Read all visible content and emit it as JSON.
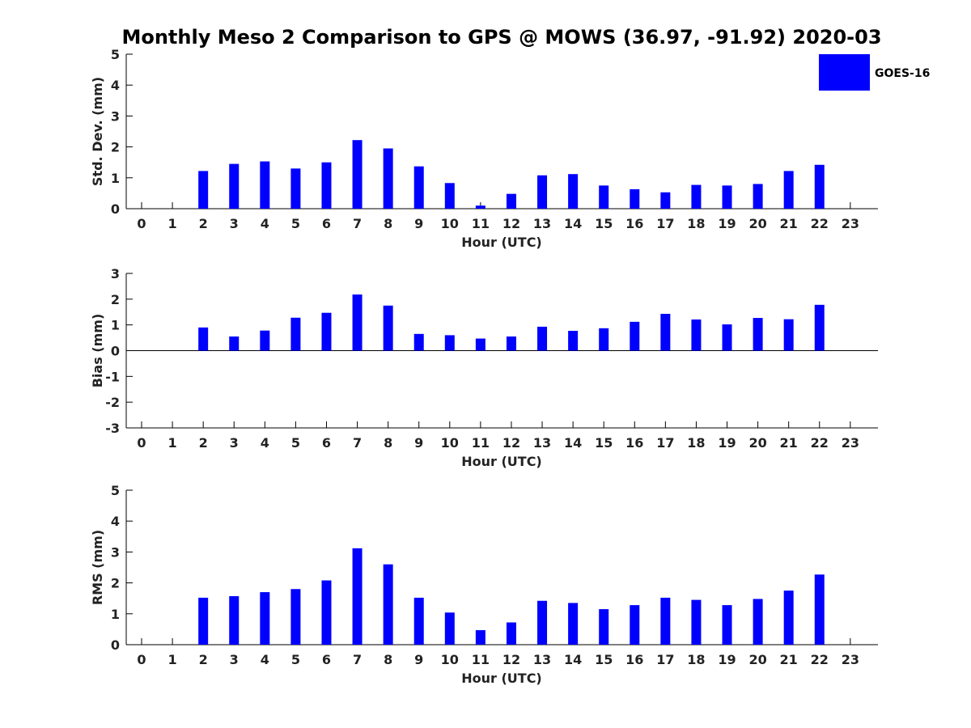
{
  "chart_data": {
    "title": "Monthly Meso 2 Comparison to GPS @ MOWS (36.97, -91.92) 2020-03",
    "legend": {
      "label": "GOES-16",
      "color": "#0000ff",
      "placement": "top-right"
    },
    "categories": [
      "0",
      "1",
      "2",
      "3",
      "4",
      "5",
      "6",
      "7",
      "8",
      "9",
      "10",
      "11",
      "12",
      "13",
      "14",
      "15",
      "16",
      "17",
      "18",
      "19",
      "20",
      "21",
      "22",
      "23"
    ],
    "panels": [
      {
        "type": "bar",
        "xlabel": "Hour (UTC)",
        "ylabel": "Std. Dev. (mm)",
        "ylim": [
          0,
          5
        ],
        "yticks": [
          "0",
          "1",
          "2",
          "3",
          "4",
          "5"
        ],
        "series": [
          {
            "name": "GOES-16",
            "color": "#0000ff",
            "values": [
              null,
              null,
              1.22,
              1.45,
              1.53,
              1.3,
              1.5,
              2.22,
              1.95,
              1.37,
              0.83,
              0.1,
              0.48,
              1.08,
              1.12,
              0.75,
              0.63,
              0.53,
              0.77,
              0.75,
              0.8,
              1.22,
              1.42,
              null
            ]
          }
        ]
      },
      {
        "type": "bar",
        "xlabel": "Hour (UTC)",
        "ylabel": "Bias (mm)",
        "ylim": [
          -3,
          3
        ],
        "yticks": [
          "-3",
          "-2",
          "-1",
          "0",
          "1",
          "2",
          "3"
        ],
        "series": [
          {
            "name": "GOES-16",
            "color": "#0000ff",
            "values": [
              null,
              null,
              0.9,
              0.55,
              0.78,
              1.28,
              1.47,
              2.18,
              1.75,
              0.65,
              0.6,
              0.47,
              0.55,
              0.93,
              0.77,
              0.87,
              1.12,
              1.43,
              1.21,
              1.02,
              1.27,
              1.22,
              1.78,
              null
            ]
          }
        ]
      },
      {
        "type": "bar",
        "xlabel": "Hour (UTC)",
        "ylabel": "RMS (mm)",
        "ylim": [
          0,
          5
        ],
        "yticks": [
          "0",
          "1",
          "2",
          "3",
          "4",
          "5"
        ],
        "series": [
          {
            "name": "GOES-16",
            "color": "#0000ff",
            "values": [
              null,
              null,
              1.52,
              1.57,
              1.7,
              1.8,
              2.08,
              3.12,
              2.6,
              1.52,
              1.04,
              0.47,
              0.72,
              1.42,
              1.35,
              1.15,
              1.28,
              1.52,
              1.45,
              1.28,
              1.48,
              1.75,
              2.27,
              null
            ]
          }
        ]
      }
    ]
  }
}
